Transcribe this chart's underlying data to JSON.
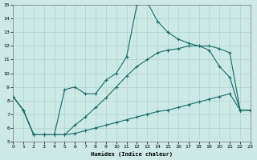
{
  "xlabel": "Humidex (Indice chaleur)",
  "ylabel": "",
  "bg_color": "#cce9e5",
  "grid_color": "#aad4ce",
  "line_color": "#1a6b6b",
  "xlim": [
    0,
    23
  ],
  "ylim": [
    5,
    15
  ],
  "xticks": [
    0,
    1,
    2,
    3,
    4,
    5,
    6,
    7,
    8,
    9,
    10,
    11,
    12,
    13,
    14,
    15,
    16,
    17,
    18,
    19,
    20,
    21,
    22,
    23
  ],
  "yticks": [
    5,
    6,
    7,
    8,
    9,
    10,
    11,
    12,
    13,
    14,
    15
  ],
  "line1_x": [
    0,
    1,
    2,
    3,
    4,
    5,
    6,
    7,
    8,
    9,
    10,
    11,
    12,
    13,
    14,
    15,
    16,
    17,
    18,
    19,
    20,
    21,
    22,
    23
  ],
  "line1_y": [
    8.3,
    7.3,
    5.5,
    5.5,
    5.5,
    5.5,
    5.6,
    5.8,
    6.0,
    6.2,
    6.4,
    6.6,
    6.8,
    7.0,
    7.2,
    7.3,
    7.5,
    7.7,
    7.9,
    8.1,
    8.3,
    8.5,
    7.3,
    7.3
  ],
  "line2_x": [
    0,
    1,
    2,
    3,
    4,
    5,
    6,
    7,
    8,
    9,
    10,
    11,
    12,
    13,
    14,
    15,
    16,
    17,
    18,
    19,
    20,
    21,
    22,
    23
  ],
  "line2_y": [
    8.3,
    7.3,
    5.5,
    5.5,
    5.5,
    8.8,
    9.0,
    8.5,
    8.5,
    9.5,
    10.0,
    11.2,
    15.0,
    15.2,
    13.8,
    13.0,
    12.5,
    12.2,
    12.0,
    11.7,
    10.5,
    9.7,
    7.3,
    7.3
  ],
  "line3_x": [
    0,
    1,
    2,
    3,
    4,
    5,
    6,
    7,
    8,
    9,
    10,
    11,
    12,
    13,
    14,
    15,
    16,
    17,
    18,
    19,
    20,
    21,
    22,
    23
  ],
  "line3_y": [
    8.3,
    7.3,
    5.5,
    5.5,
    5.5,
    5.5,
    6.2,
    6.8,
    7.5,
    8.2,
    9.0,
    9.8,
    10.5,
    11.0,
    11.5,
    11.7,
    11.8,
    12.0,
    12.0,
    12.0,
    11.8,
    11.5,
    7.3,
    7.3
  ]
}
